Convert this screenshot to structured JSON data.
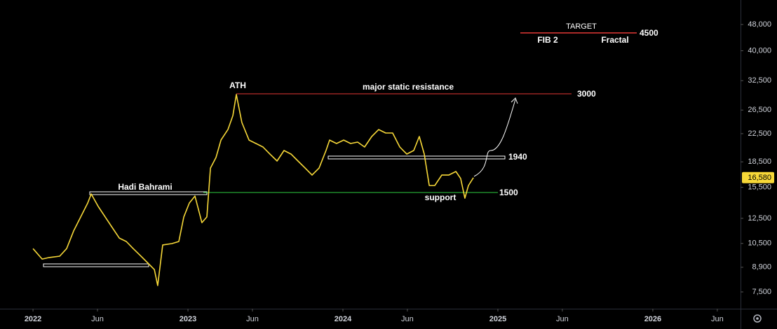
{
  "chart_data": {
    "type": "line",
    "log_scale": true,
    "x": [
      2022.0,
      2022.059,
      2022.104,
      2022.172,
      2022.217,
      2022.262,
      2022.308,
      2022.353,
      2022.376,
      2022.421,
      2022.466,
      2022.511,
      2022.557,
      2022.602,
      2022.647,
      2022.692,
      2022.738,
      2022.783,
      2022.805,
      2022.837,
      2022.896,
      2022.941,
      2022.973,
      2023.009,
      2023.045,
      2023.09,
      2023.122,
      2023.145,
      2023.181,
      2023.213,
      2023.258,
      2023.29,
      2023.312,
      2023.348,
      2023.394,
      2023.439,
      2023.484,
      2023.529,
      2023.575,
      2023.62,
      2023.665,
      2023.71,
      2023.756,
      2023.801,
      2023.846,
      2023.891,
      2023.914,
      2023.959,
      2024.005,
      2024.05,
      2024.095,
      2024.14,
      2024.186,
      2024.231,
      2024.276,
      2024.321,
      2024.367,
      2024.412,
      2024.457,
      2024.493,
      2024.525,
      2024.557,
      2024.593,
      2024.638,
      2024.683,
      2024.729,
      2024.76,
      2024.787,
      2024.81,
      2024.842
    ],
    "values": [
      10130,
      9420,
      9520,
      9610,
      10130,
      11450,
      12620,
      13900,
      14800,
      13570,
      12620,
      11730,
      10900,
      10640,
      10130,
      9660,
      9200,
      8760,
      7840,
      10390,
      10490,
      10640,
      12620,
      13900,
      14590,
      12130,
      12620,
      17720,
      19070,
      21520,
      23150,
      25510,
      29520,
      24310,
      21520,
      21010,
      20510,
      19530,
      18610,
      20020,
      19530,
      18610,
      17720,
      16880,
      17720,
      20020,
      21520,
      21010,
      21520,
      21010,
      21220,
      20510,
      22060,
      23150,
      22600,
      22600,
      20510,
      19530,
      20020,
      22060,
      19530,
      15700,
      15700,
      16880,
      16880,
      17300,
      16480,
      14380,
      15700,
      16580
    ],
    "color": "#f7d838",
    "xlim": [
      2021.787,
      2026.566
    ],
    "xticks": [
      2022,
      {
        "value": 2022.416,
        "label": "Jun"
      },
      2023,
      {
        "value": 2023.416,
        "label": "Jun"
      },
      2024,
      {
        "value": 2024.416,
        "label": "Jun"
      },
      2025,
      {
        "value": 2025.416,
        "label": "Jun"
      },
      2026,
      {
        "value": 2026.416,
        "label": "Jun"
      }
    ],
    "ylim": [
      6675,
      56900
    ],
    "yticks": [
      {
        "value": 7500,
        "label": "7,500"
      },
      {
        "value": 8900,
        "label": "8,900"
      },
      {
        "value": 10500,
        "label": "10,500"
      },
      {
        "value": 12500,
        "label": "12,500"
      },
      {
        "value": 15500,
        "label": "15,500"
      },
      {
        "value": 18500,
        "label": "18,500"
      },
      {
        "value": 22500,
        "label": "22,500"
      },
      {
        "value": 26500,
        "label": "26,500"
      },
      {
        "value": 32500,
        "label": "32,500"
      },
      {
        "value": 40000,
        "label": "40,000"
      },
      {
        "value": 48000,
        "label": "48,000"
      }
    ],
    "last_price": {
      "value": 16580,
      "label": "16,580"
    },
    "annotations": [
      "Hadi Bahrami",
      "ATH",
      "major static resistance",
      "3000",
      "1940",
      "support",
      "1500",
      "TARGET",
      "FIB 2",
      "4500",
      "Fractal"
    ]
  }
}
